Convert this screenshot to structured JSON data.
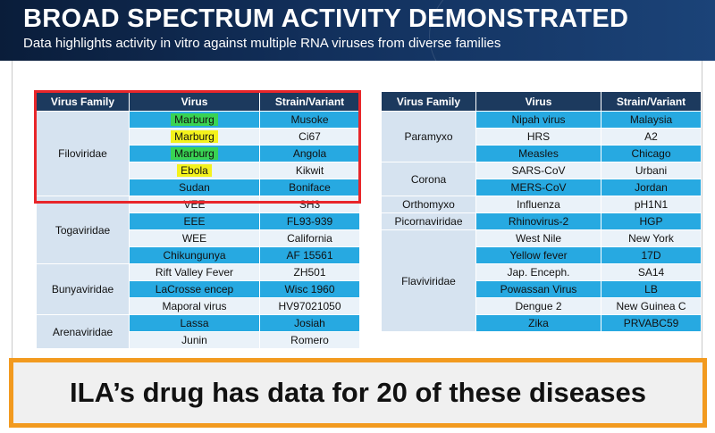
{
  "header": {
    "title": "BROAD SPECTRUM ACTIVITY DEMONSTRATED",
    "subtitle": "Data highlights activity in vitro against multiple RNA viruses from diverse families"
  },
  "columns": [
    "Virus Family",
    "Virus",
    "Strain/Variant"
  ],
  "left_table": [
    {
      "family": "Filoviridae",
      "rows": [
        {
          "virus": "Marburg",
          "strain": "Musoke",
          "highlight": "green"
        },
        {
          "virus": "Marburg",
          "strain": "Ci67",
          "highlight": "yellow"
        },
        {
          "virus": "Marburg",
          "strain": "Angola",
          "highlight": "green"
        },
        {
          "virus": "Ebola",
          "strain": "Kikwit",
          "highlight": "yellow"
        },
        {
          "virus": "Sudan",
          "strain": "Boniface",
          "highlight": ""
        }
      ]
    },
    {
      "family": "Togaviridae",
      "rows": [
        {
          "virus": "VEE",
          "strain": "SH3",
          "highlight": ""
        },
        {
          "virus": "EEE",
          "strain": "FL93-939",
          "highlight": ""
        },
        {
          "virus": "WEE",
          "strain": "California",
          "highlight": ""
        },
        {
          "virus": "Chikungunya",
          "strain": "AF 15561",
          "highlight": ""
        }
      ]
    },
    {
      "family": "Bunyaviridae",
      "rows": [
        {
          "virus": "Rift Valley Fever",
          "strain": "ZH501",
          "highlight": ""
        },
        {
          "virus": "LaCrosse encep",
          "strain": "Wisc 1960",
          "highlight": ""
        },
        {
          "virus": "Maporal virus",
          "strain": "HV97021050",
          "highlight": ""
        }
      ]
    },
    {
      "family": "Arenaviridae",
      "rows": [
        {
          "virus": "Lassa",
          "strain": "Josiah",
          "highlight": ""
        },
        {
          "virus": "Junin",
          "strain": "Romero",
          "highlight": ""
        }
      ]
    }
  ],
  "right_table": [
    {
      "family": "Paramyxo",
      "rows": [
        {
          "virus": "Nipah virus",
          "strain": "Malaysia"
        },
        {
          "virus": "HRS",
          "strain": "A2"
        },
        {
          "virus": "Measles",
          "strain": "Chicago"
        }
      ]
    },
    {
      "family": "Corona",
      "rows": [
        {
          "virus": "SARS-CoV",
          "strain": "Urbani"
        },
        {
          "virus": "MERS-CoV",
          "strain": "Jordan"
        }
      ]
    },
    {
      "family": "Orthomyxo",
      "rows": [
        {
          "virus": "Influenza",
          "strain": "pH1N1"
        }
      ]
    },
    {
      "family": "Picornaviridae",
      "rows": [
        {
          "virus": "Rhinovirus-2",
          "strain": "HGP"
        }
      ]
    },
    {
      "family": "Flaviviridae",
      "rows": [
        {
          "virus": "West Nile",
          "strain": "New York"
        },
        {
          "virus": "Yellow fever",
          "strain": "17D"
        },
        {
          "virus": "Jap. Enceph.",
          "strain": "SA14"
        },
        {
          "virus": "Powassan Virus",
          "strain": "LB"
        },
        {
          "virus": "Dengue 2",
          "strain": "New Guinea C"
        },
        {
          "virus": "Zika",
          "strain": "PRVABC59"
        }
      ]
    }
  ],
  "banner": {
    "text": "ILA’s drug has data for 20 of these diseases"
  },
  "colors": {
    "header_bg": "#12305c",
    "table_header": "#1c3a5e",
    "cell_blue": "#27a9e1",
    "cell_light": "#eaf2f9",
    "family_cell": "#d6e3f0",
    "highlight_green": "#39d353",
    "highlight_yellow": "#f4f21c",
    "red_outline": "#e8262a",
    "banner_border": "#f29a1f"
  }
}
